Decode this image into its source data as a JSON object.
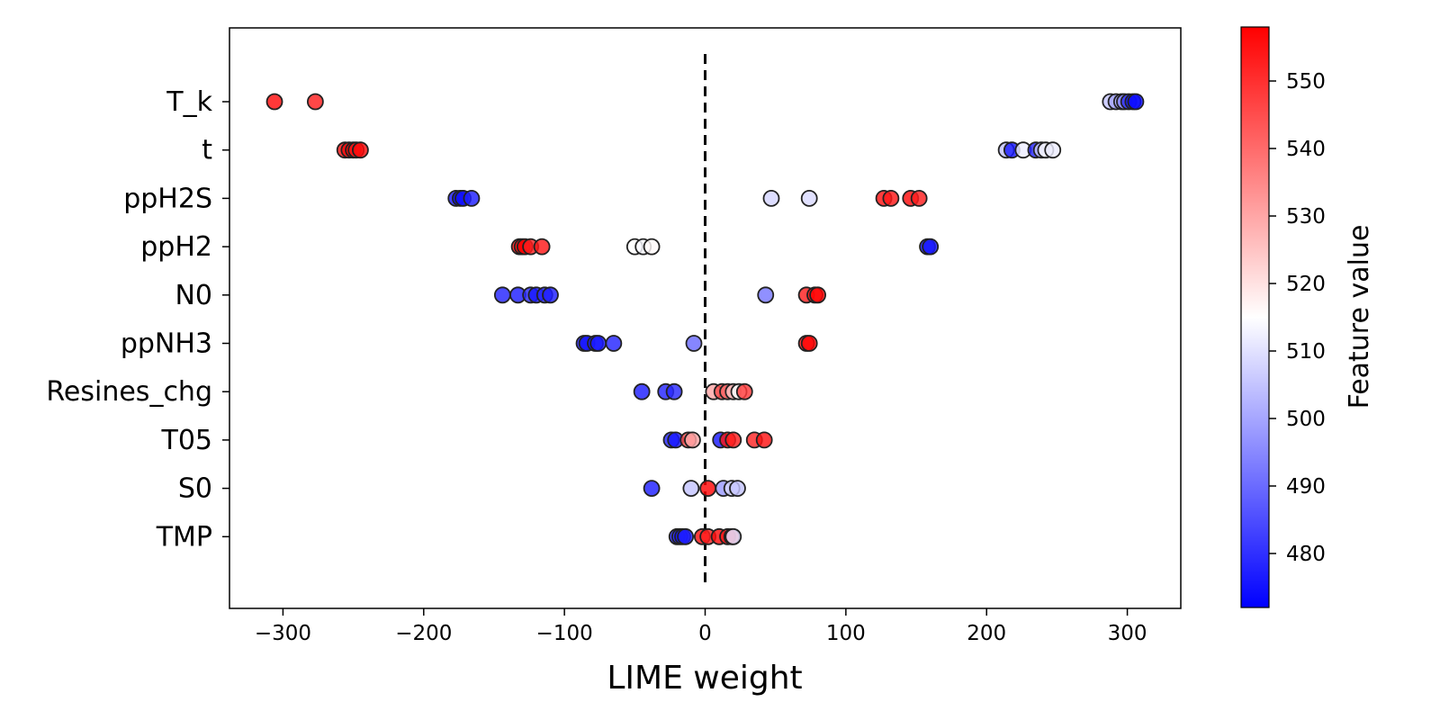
{
  "chart_data": {
    "type": "scatter",
    "title": "",
    "xlabel": "LIME weight",
    "ylabel": "",
    "xlim": [
      -338,
      338
    ],
    "xticks": [
      -300,
      -200,
      -100,
      0,
      100,
      200,
      300
    ],
    "xtick_labels": [
      "−300",
      "−200",
      "−100",
      "0",
      "100",
      "200",
      "300"
    ],
    "grid": false,
    "reference_line": {
      "x": 0,
      "style": "dashed"
    },
    "colormap": {
      "name": "bwr",
      "low_color": "#0000ff",
      "mid_color": "#ffffff",
      "high_color": "#ff0000"
    },
    "colorbar": {
      "label": "Feature value",
      "range": [
        472,
        558
      ],
      "ticks": [
        480,
        490,
        500,
        510,
        520,
        530,
        540,
        550
      ]
    },
    "features": [
      {
        "name": "T_k",
        "points": [
          {
            "x": -306,
            "v": 556
          },
          {
            "x": -277,
            "v": 553
          },
          {
            "x": 288,
            "v": 505
          },
          {
            "x": 292,
            "v": 500
          },
          {
            "x": 296,
            "v": 502
          },
          {
            "x": 298,
            "v": 495
          },
          {
            "x": 301,
            "v": 480
          },
          {
            "x": 304,
            "v": 476
          },
          {
            "x": 306,
            "v": 474
          }
        ]
      },
      {
        "name": "t",
        "points": [
          {
            "x": -256,
            "v": 555
          },
          {
            "x": -253,
            "v": 556
          },
          {
            "x": -250,
            "v": 557
          },
          {
            "x": -248,
            "v": 554
          },
          {
            "x": -245,
            "v": 556
          },
          {
            "x": 214,
            "v": 505
          },
          {
            "x": 218,
            "v": 476
          },
          {
            "x": 226,
            "v": 512
          },
          {
            "x": 235,
            "v": 478
          },
          {
            "x": 239,
            "v": 506
          },
          {
            "x": 242,
            "v": 514
          },
          {
            "x": 247,
            "v": 512
          }
        ]
      },
      {
        "name": "ppH2S",
        "points": [
          {
            "x": -177,
            "v": 476
          },
          {
            "x": -174,
            "v": 474
          },
          {
            "x": -172,
            "v": 475
          },
          {
            "x": -166,
            "v": 477
          },
          {
            "x": 47,
            "v": 508
          },
          {
            "x": 74,
            "v": 509
          },
          {
            "x": 127,
            "v": 555
          },
          {
            "x": 132,
            "v": 554
          },
          {
            "x": 146,
            "v": 556
          },
          {
            "x": 152,
            "v": 553
          }
        ]
      },
      {
        "name": "ppH2",
        "points": [
          {
            "x": -132,
            "v": 557
          },
          {
            "x": -130,
            "v": 556
          },
          {
            "x": -128,
            "v": 558
          },
          {
            "x": -124,
            "v": 553
          },
          {
            "x": -116,
            "v": 554
          },
          {
            "x": -50,
            "v": 515
          },
          {
            "x": -44,
            "v": 514
          },
          {
            "x": -38,
            "v": 516
          },
          {
            "x": 158,
            "v": 474
          },
          {
            "x": 160,
            "v": 476
          }
        ]
      },
      {
        "name": "N0",
        "points": [
          {
            "x": -144,
            "v": 478
          },
          {
            "x": -133,
            "v": 477
          },
          {
            "x": -124,
            "v": 479
          },
          {
            "x": -120,
            "v": 476
          },
          {
            "x": -114,
            "v": 478
          },
          {
            "x": -110,
            "v": 477
          },
          {
            "x": 43,
            "v": 492
          },
          {
            "x": 72,
            "v": 553
          },
          {
            "x": 78,
            "v": 555
          },
          {
            "x": 80,
            "v": 557
          }
        ]
      },
      {
        "name": "ppNH3",
        "points": [
          {
            "x": -86,
            "v": 476
          },
          {
            "x": -84,
            "v": 475
          },
          {
            "x": -78,
            "v": 477
          },
          {
            "x": -76,
            "v": 476
          },
          {
            "x": -65,
            "v": 478
          },
          {
            "x": -8,
            "v": 490
          },
          {
            "x": 72,
            "v": 556
          },
          {
            "x": 74,
            "v": 557
          }
        ]
      },
      {
        "name": "Resines_chg",
        "points": [
          {
            "x": -45,
            "v": 477
          },
          {
            "x": -28,
            "v": 478
          },
          {
            "x": -22,
            "v": 479
          },
          {
            "x": 6,
            "v": 530
          },
          {
            "x": 12,
            "v": 545
          },
          {
            "x": 16,
            "v": 540
          },
          {
            "x": 20,
            "v": 525
          },
          {
            "x": 24,
            "v": 515
          },
          {
            "x": 28,
            "v": 548
          }
        ]
      },
      {
        "name": "T05",
        "points": [
          {
            "x": -24,
            "v": 478
          },
          {
            "x": -21,
            "v": 476
          },
          {
            "x": -12,
            "v": 545
          },
          {
            "x": -9,
            "v": 530
          },
          {
            "x": 11,
            "v": 476
          },
          {
            "x": 16,
            "v": 555
          },
          {
            "x": 20,
            "v": 553
          },
          {
            "x": 35,
            "v": 552
          },
          {
            "x": 42,
            "v": 555
          }
        ]
      },
      {
        "name": "S0",
        "points": [
          {
            "x": -38,
            "v": 477
          },
          {
            "x": -10,
            "v": 505
          },
          {
            "x": 2,
            "v": 557
          },
          {
            "x": 13,
            "v": 498
          },
          {
            "x": 19,
            "v": 508
          },
          {
            "x": 23,
            "v": 505
          }
        ]
      },
      {
        "name": "TMP",
        "points": [
          {
            "x": -20,
            "v": 476
          },
          {
            "x": -18,
            "v": 478
          },
          {
            "x": -16,
            "v": 475
          },
          {
            "x": -14,
            "v": 477
          },
          {
            "x": -2,
            "v": 555
          },
          {
            "x": 2,
            "v": 553
          },
          {
            "x": 10,
            "v": 556
          },
          {
            "x": 16,
            "v": 554
          },
          {
            "x": 19,
            "v": 545
          },
          {
            "x": 20,
            "v": 510
          }
        ]
      }
    ]
  }
}
